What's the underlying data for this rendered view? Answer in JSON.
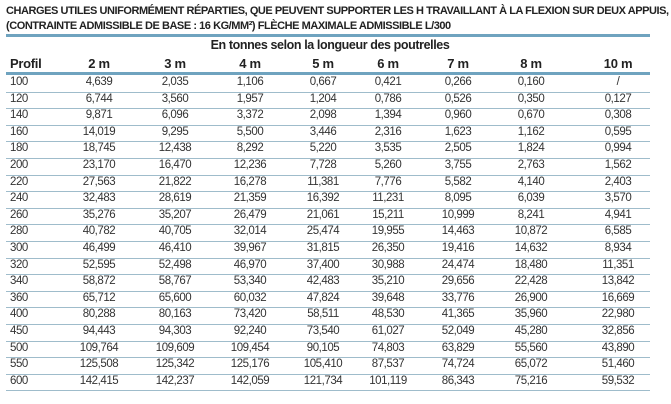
{
  "title_line1": "CHARGES UTILES UNIFORMÉMENT RÉPARTIES, QUE PEUVENT SUPPORTER LES H TRAVAILLANT À LA FLEXION SUR DEUX APPUIS,",
  "title_line2": "(CONTRAINTE ADMISSIBLE DE BASE : 16 KG/MM²) FLÈCHE MAXIMALE ADMISSIBLE L/300",
  "subtitle": "En tonnes selon la longueur des poutrelles",
  "accent_color": "#6fa3bf",
  "headers": [
    "Profil",
    "2 m",
    "3 m",
    "4 m",
    "5 m",
    "6 m",
    "7 m",
    "8 m",
    "10 m"
  ],
  "rows": [
    [
      "100",
      "4,639",
      "2,035",
      "1,106",
      "0,667",
      "0,421",
      "0,266",
      "0,160",
      "/"
    ],
    [
      "120",
      "6,744",
      "3,560",
      "1,957",
      "1,204",
      "0,786",
      "0,526",
      "0,350",
      "0,127"
    ],
    [
      "140",
      "9,871",
      "6,096",
      "3,372",
      "2,098",
      "1,394",
      "0,960",
      "0,670",
      "0,308"
    ],
    [
      "160",
      "14,019",
      "9,295",
      "5,500",
      "3,446",
      "2,316",
      "1,623",
      "1,162",
      "0,595"
    ],
    [
      "180",
      "18,745",
      "12,438",
      "8,292",
      "5,220",
      "3,535",
      "2,505",
      "1,824",
      "0,994"
    ],
    [
      "200",
      "23,170",
      "16,470",
      "12,236",
      "7,728",
      "5,260",
      "3,755",
      "2,763",
      "1,562"
    ],
    [
      "220",
      "27,563",
      "21,822",
      "16,278",
      "11,381",
      "7,776",
      "5,582",
      "4,140",
      "2,403"
    ],
    [
      "240",
      "32,483",
      "28,619",
      "21,359",
      "16,392",
      "11,231",
      "8,095",
      "6,039",
      "3,570"
    ],
    [
      "260",
      "35,276",
      "35,207",
      "26,479",
      "21,061",
      "15,211",
      "10,999",
      "8,241",
      "4,941"
    ],
    [
      "280",
      "40,782",
      "40,705",
      "32,014",
      "25,474",
      "19,955",
      "14,463",
      "10,872",
      "6,585"
    ],
    [
      "300",
      "46,499",
      "46,410",
      "39,967",
      "31,815",
      "26,350",
      "19,416",
      "14,632",
      "8,934"
    ],
    [
      "320",
      "52,595",
      "52,498",
      "46,970",
      "37,400",
      "30,988",
      "24,474",
      "18,480",
      "11,351"
    ],
    [
      "340",
      "58,872",
      "58,767",
      "53,340",
      "42,483",
      "35,210",
      "29,656",
      "22,428",
      "13,842"
    ],
    [
      "360",
      "65,712",
      "65,600",
      "60,032",
      "47,824",
      "39,648",
      "33,776",
      "26,900",
      "16,669"
    ],
    [
      "400",
      "80,288",
      "80,163",
      "73,420",
      "58,511",
      "48,530",
      "41,365",
      "35,960",
      "22,980"
    ],
    [
      "450",
      "94,443",
      "94,303",
      "92,240",
      "73,540",
      "61,027",
      "52,049",
      "45,280",
      "32,856"
    ],
    [
      "500",
      "109,764",
      "109,609",
      "109,454",
      "90,105",
      "74,803",
      "63,829",
      "55,560",
      "43,890"
    ],
    [
      "550",
      "125,508",
      "125,342",
      "125,176",
      "105,410",
      "87,537",
      "74,724",
      "65,072",
      "51,460"
    ],
    [
      "600",
      "142,415",
      "142,237",
      "142,059",
      "121,734",
      "101,119",
      "86,343",
      "75,216",
      "59,532"
    ]
  ]
}
